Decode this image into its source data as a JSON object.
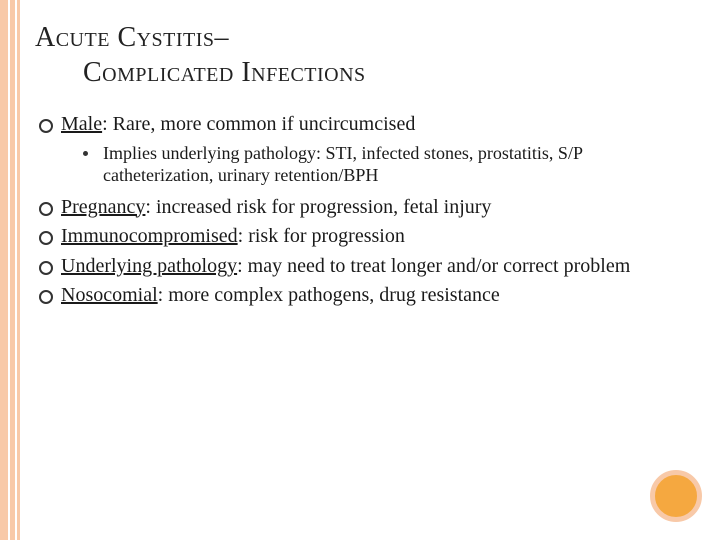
{
  "title": {
    "line1": "Acute Cystitis–",
    "line2": "Complicated Infections"
  },
  "bullets": [
    {
      "label": "Male",
      "text": ":  Rare, more common if uncircumcised",
      "sub": [
        "Implies underlying pathology:  STI, infected stones, prostatitis, S/P catheterization, urinary retention/BPH"
      ]
    },
    {
      "label": "Pregnancy",
      "text": ": increased risk for progression, fetal injury"
    },
    {
      "label": "Immunocompromised",
      "text": ":  risk for progression"
    },
    {
      "label": "Underlying pathology",
      "text": ":  may need to treat longer and/or correct problem"
    },
    {
      "label": "Nosocomial",
      "text": ":  more complex pathogens, drug resistance"
    }
  ],
  "colors": {
    "accent_light": "#f8c9a8",
    "accent_dark": "#f5a840",
    "text": "#1a1a1a",
    "background": "#ffffff"
  }
}
